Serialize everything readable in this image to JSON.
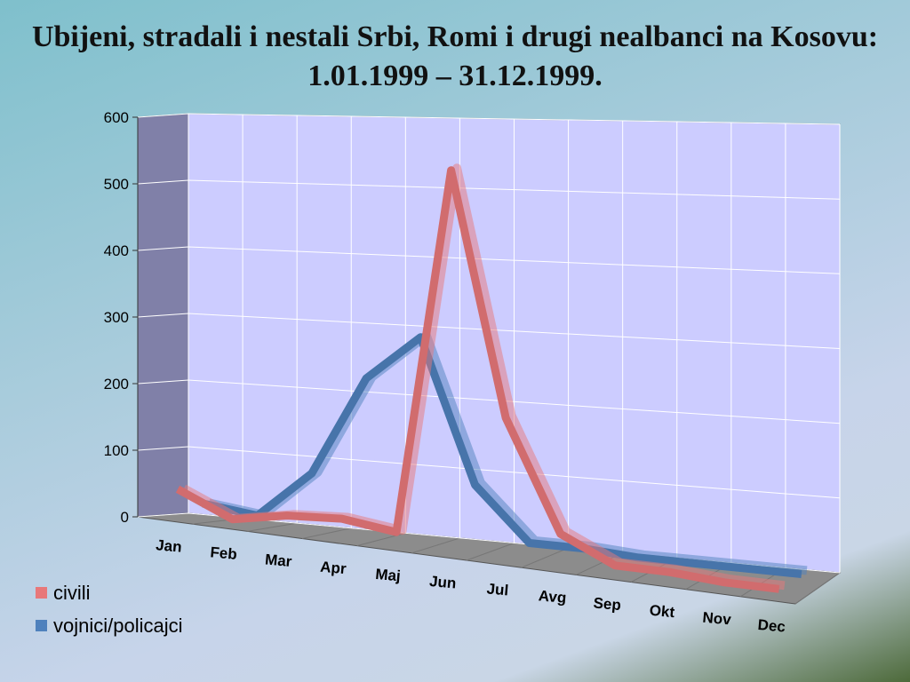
{
  "chart_data": {
    "type": "line3d",
    "title": "Ubijeni, stradali i nestali Srbi, Romi i drugi nealbanci na Kosovu: 1.01.1999 – 31.12.1999.",
    "categories": [
      "Jan",
      "Feb",
      "Mar",
      "Apr",
      "Maj",
      "Jun",
      "Jul",
      "Avg",
      "Sep",
      "Okt",
      "Nov",
      "Dec"
    ],
    "series": [
      {
        "name": "civili",
        "color": "#e8787a",
        "values": [
          45,
          10,
          25,
          30,
          20,
          545,
          200,
          45,
          10,
          10,
          5,
          5
        ]
      },
      {
        "name": "vojnici/policajci",
        "color": "#4f81bd",
        "values": [
          20,
          10,
          80,
          225,
          290,
          85,
          10,
          10,
          5,
          5,
          5,
          5
        ]
      }
    ],
    "ylim": [
      0,
      600
    ],
    "yticks": [
      0,
      100,
      200,
      300,
      400,
      500,
      600
    ],
    "grid": true,
    "legend": "bottom-left"
  }
}
